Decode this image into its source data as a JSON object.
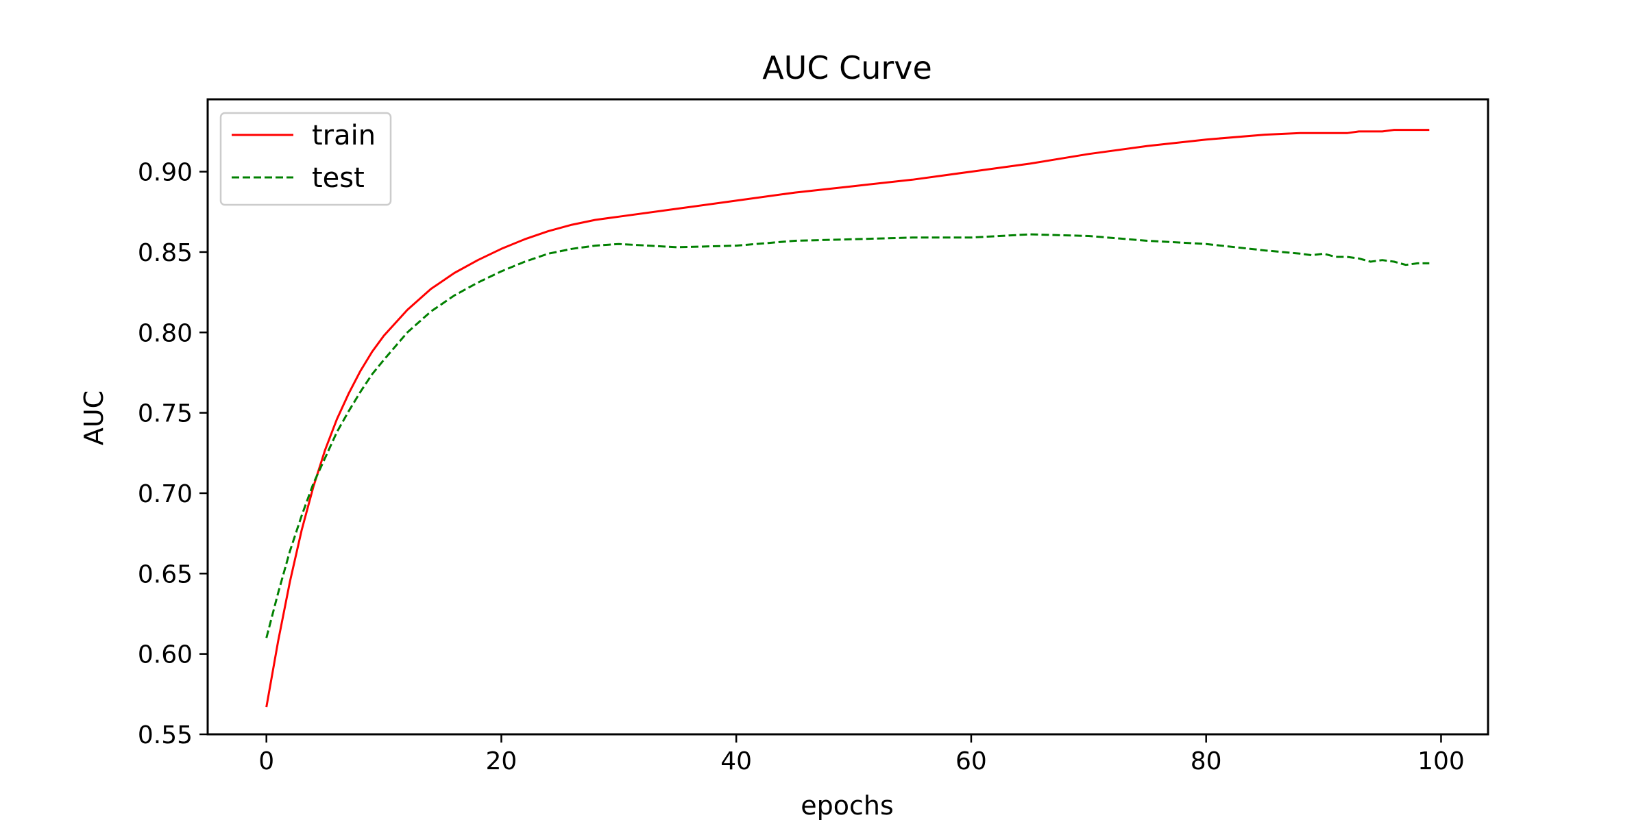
{
  "chart_data": {
    "type": "line",
    "title": "AUC Curve",
    "xlabel": "epochs",
    "ylabel": "AUC",
    "xlim": [
      -5,
      104
    ],
    "ylim": [
      0.55,
      0.945
    ],
    "xticks": [
      0,
      20,
      40,
      60,
      80,
      100
    ],
    "xtick_labels": [
      "0",
      "20",
      "40",
      "60",
      "80",
      "100"
    ],
    "yticks": [
      0.55,
      0.6,
      0.65,
      0.7,
      0.75,
      0.8,
      0.85,
      0.9
    ],
    "ytick_labels": [
      "0.55",
      "0.60",
      "0.65",
      "0.70",
      "0.75",
      "0.80",
      "0.85",
      "0.90"
    ],
    "grid": false,
    "legend_position": "top-left",
    "x": [
      0,
      1,
      2,
      3,
      4,
      5,
      6,
      7,
      8,
      9,
      10,
      12,
      14,
      16,
      18,
      20,
      22,
      24,
      26,
      28,
      30,
      35,
      40,
      45,
      50,
      55,
      60,
      65,
      70,
      75,
      80,
      85,
      88,
      89,
      90,
      91,
      92,
      93,
      94,
      95,
      96,
      97,
      98,
      99
    ],
    "series": [
      {
        "name": "train",
        "color": "#ff0000",
        "style": "solid",
        "values": [
          0.567,
          0.608,
          0.645,
          0.677,
          0.704,
          0.727,
          0.746,
          0.762,
          0.776,
          0.788,
          0.798,
          0.814,
          0.827,
          0.837,
          0.845,
          0.852,
          0.858,
          0.863,
          0.867,
          0.87,
          0.872,
          0.877,
          0.882,
          0.887,
          0.891,
          0.895,
          0.9,
          0.905,
          0.911,
          0.916,
          0.92,
          0.923,
          0.924,
          0.924,
          0.924,
          0.924,
          0.924,
          0.925,
          0.925,
          0.925,
          0.926,
          0.926,
          0.926,
          0.926
        ]
      },
      {
        "name": "test",
        "color": "#008000",
        "style": "dashed",
        "values": [
          0.61,
          0.638,
          0.664,
          0.686,
          0.706,
          0.722,
          0.738,
          0.751,
          0.763,
          0.774,
          0.783,
          0.8,
          0.813,
          0.823,
          0.831,
          0.838,
          0.844,
          0.849,
          0.852,
          0.854,
          0.855,
          0.853,
          0.854,
          0.857,
          0.858,
          0.859,
          0.859,
          0.861,
          0.86,
          0.857,
          0.855,
          0.851,
          0.849,
          0.848,
          0.849,
          0.847,
          0.847,
          0.846,
          0.844,
          0.845,
          0.844,
          0.842,
          0.843,
          0.843
        ]
      }
    ]
  }
}
